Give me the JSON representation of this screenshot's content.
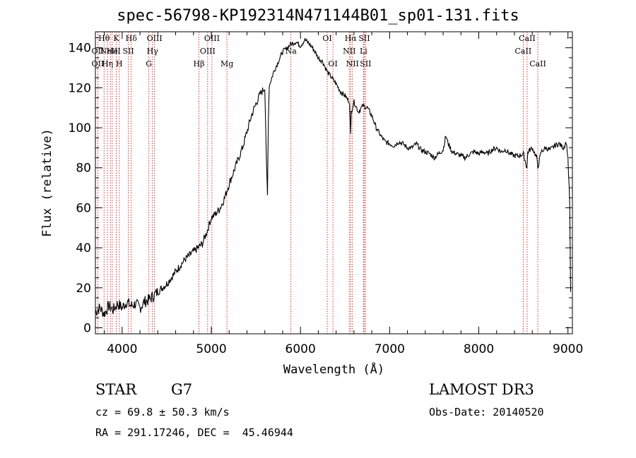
{
  "chart_data": {
    "type": "line",
    "title": "spec-56798-KP192314N471144B01_sp01-131.fits",
    "xlabel": "Wavelength (Å)",
    "ylabel": "Flux (relative)",
    "xlim": [
      3700,
      9050
    ],
    "ylim": [
      -3,
      148
    ],
    "x_ticks": [
      4000,
      5000,
      6000,
      7000,
      8000,
      9000
    ],
    "x_tick_labels": [
      "4000",
      "5000",
      "6000",
      "7000",
      "8000",
      "9000"
    ],
    "y_ticks": [
      0,
      20,
      40,
      60,
      80,
      100,
      120,
      140
    ],
    "y_tick_labels": [
      "0",
      "20",
      "40",
      "60",
      "80",
      "100",
      "120",
      "140"
    ],
    "line_color": "#000000",
    "marker_color": "#cc0000",
    "series": [
      {
        "name": "flux",
        "x": [
          3700,
          3750,
          3800,
          3850,
          3900,
          3950,
          4000,
          4050,
          4100,
          4150,
          4200,
          4250,
          4300,
          4350,
          4400,
          4450,
          4500,
          4550,
          4600,
          4650,
          4700,
          4750,
          4800,
          4850,
          4900,
          4950,
          5000,
          5050,
          5100,
          5150,
          5200,
          5250,
          5300,
          5350,
          5400,
          5450,
          5500,
          5550,
          5600,
          5620,
          5630,
          5640,
          5650,
          5700,
          5750,
          5800,
          5850,
          5900,
          5950,
          6000,
          6050,
          6100,
          6150,
          6200,
          6250,
          6300,
          6350,
          6400,
          6450,
          6500,
          6550,
          6563,
          6570,
          6600,
          6650,
          6700,
          6750,
          6800,
          6850,
          6900,
          6950,
          7000,
          7050,
          7100,
          7150,
          7200,
          7250,
          7300,
          7350,
          7400,
          7450,
          7500,
          7550,
          7600,
          7630,
          7650,
          7700,
          7750,
          7800,
          7850,
          7900,
          7950,
          8000,
          8050,
          8100,
          8150,
          8200,
          8250,
          8300,
          8350,
          8400,
          8450,
          8500,
          8540,
          8550,
          8600,
          8650,
          8662,
          8700,
          8750,
          8800,
          8850,
          8900,
          8950,
          8980,
          9000,
          9020,
          9030
        ],
        "y": [
          8,
          10,
          7,
          11,
          9,
          12,
          10,
          13,
          11,
          12,
          10,
          13,
          14,
          16,
          18,
          20,
          22,
          25,
          28,
          31,
          34,
          36,
          38,
          40,
          42,
          48,
          55,
          57,
          60,
          65,
          72,
          78,
          84,
          90,
          98,
          106,
          112,
          117,
          120,
          80,
          66,
          105,
          121,
          128,
          133,
          138,
          140,
          142,
          143,
          141,
          144,
          142,
          139,
          135,
          133,
          128,
          125,
          122,
          118,
          116,
          113,
          96,
          108,
          113,
          108,
          111,
          110,
          106,
          100,
          96,
          93,
          92,
          91,
          93,
          92,
          90,
          90,
          92,
          89,
          88,
          87,
          85,
          87,
          89,
          96,
          93,
          88,
          87,
          86,
          85,
          87,
          88,
          87,
          88,
          87,
          89,
          90,
          88,
          89,
          87,
          86,
          86,
          87,
          80,
          88,
          90,
          85,
          80,
          88,
          90,
          89,
          91,
          92,
          90,
          93,
          85,
          62,
          18
        ]
      }
    ],
    "spectral_lines": [
      {
        "wavelength": 3727,
        "labels": [
          "",
          "OII",
          "OII"
        ]
      },
      {
        "wavelength": 3797,
        "labels": [
          "Hθ",
          "",
          ""
        ]
      },
      {
        "wavelength": 3835,
        "labels": [
          "",
          "",
          "Hη"
        ]
      },
      {
        "wavelength": 3868,
        "labels": [
          "",
          "NeIII",
          ""
        ]
      },
      {
        "wavelength": 3889,
        "labels": [
          "",
          "He",
          ""
        ]
      },
      {
        "wavelength": 3934,
        "labels": [
          "K",
          "",
          ""
        ]
      },
      {
        "wavelength": 3968,
        "labels": [
          "",
          "",
          "H"
        ]
      },
      {
        "wavelength": 4069,
        "labels": [
          "",
          "SII",
          ""
        ]
      },
      {
        "wavelength": 4102,
        "labels": [
          "Hδ",
          "",
          ""
        ]
      },
      {
        "wavelength": 4300,
        "labels": [
          "",
          "",
          "G"
        ]
      },
      {
        "wavelength": 4340,
        "labels": [
          "",
          "Hγ",
          ""
        ]
      },
      {
        "wavelength": 4363,
        "labels": [
          "OIII",
          "",
          ""
        ]
      },
      {
        "wavelength": 4861,
        "labels": [
          "",
          "",
          "Hβ"
        ]
      },
      {
        "wavelength": 4959,
        "labels": [
          "",
          "OIII",
          ""
        ]
      },
      {
        "wavelength": 5007,
        "labels": [
          "OIII",
          "",
          ""
        ]
      },
      {
        "wavelength": 5175,
        "labels": [
          "",
          "",
          "Mg"
        ]
      },
      {
        "wavelength": 5893,
        "labels": [
          "",
          "Na",
          ""
        ]
      },
      {
        "wavelength": 6300,
        "labels": [
          "OI",
          "",
          ""
        ]
      },
      {
        "wavelength": 6364,
        "labels": [
          "",
          "",
          "OI"
        ]
      },
      {
        "wavelength": 6548,
        "labels": [
          "",
          "NII",
          ""
        ]
      },
      {
        "wavelength": 6563,
        "labels": [
          "Hα",
          "",
          ""
        ]
      },
      {
        "wavelength": 6583,
        "labels": [
          "",
          "",
          "NII"
        ]
      },
      {
        "wavelength": 6707,
        "labels": [
          "",
          "Li",
          ""
        ]
      },
      {
        "wavelength": 6716,
        "labels": [
          "SII",
          "",
          ""
        ]
      },
      {
        "wavelength": 6731,
        "labels": [
          "",
          "",
          "SII"
        ]
      },
      {
        "wavelength": 8498,
        "labels": [
          "",
          "CaII",
          ""
        ]
      },
      {
        "wavelength": 8542,
        "labels": [
          "CaII",
          "",
          ""
        ]
      },
      {
        "wavelength": 8662,
        "labels": [
          "",
          "",
          "CaII"
        ]
      }
    ]
  },
  "info": {
    "object_type": "STAR",
    "subclass": "G7",
    "survey": "LAMOST DR3",
    "cz_text": "cz = 69.8 ± 50.3 km/s",
    "obs_date": "Obs-Date: 20140520",
    "coords": "RA = 291.17246, DEC =  45.46944"
  }
}
